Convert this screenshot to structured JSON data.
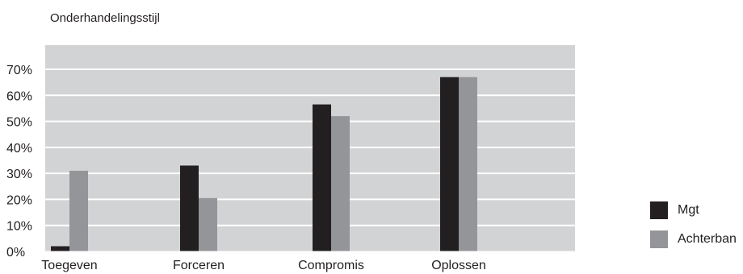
{
  "chart_data": {
    "type": "bar",
    "title": "Onderhandelingsstijl",
    "categories": [
      "Toegeven",
      "Forceren",
      "Compromis",
      "Oplossen"
    ],
    "series": [
      {
        "name": "Mgt",
        "values": [
          2,
          33,
          56.5,
          67
        ],
        "color": "#231f20"
      },
      {
        "name": "Achterban",
        "values": [
          31,
          20.5,
          52,
          67
        ],
        "color": "#939598"
      }
    ],
    "ylim": [
      0,
      70
    ],
    "yticks": [
      0,
      10,
      20,
      30,
      40,
      50,
      60,
      70
    ],
    "ytick_labels": [
      "0%",
      "10%",
      "20%",
      "30%",
      "40%",
      "50%",
      "60%",
      "70%"
    ],
    "xlabel": "",
    "ylabel": "",
    "grid": true,
    "legend_position": "right",
    "plot_background": "#d1d3d4",
    "grid_color": "#ffffff"
  }
}
